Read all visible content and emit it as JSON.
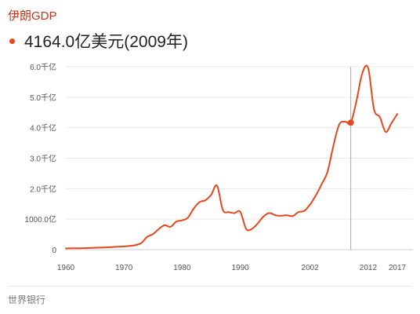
{
  "title": "伊朗GDP",
  "headline": {
    "value": "4164.0亿美元",
    "year_text": "(2009年)"
  },
  "source": "世界银行",
  "chart_data": {
    "type": "line",
    "title": "伊朗GDP",
    "ylim": [
      0,
      6000
    ],
    "xlim": [
      1960,
      2017
    ],
    "y_ticks": [
      {
        "value": 0,
        "label": "0"
      },
      {
        "value": 1000,
        "label": "1000.0亿"
      },
      {
        "value": 2000,
        "label": "2.0千亿"
      },
      {
        "value": 3000,
        "label": "3.0千亿"
      },
      {
        "value": 4000,
        "label": "4.0千亿"
      },
      {
        "value": 5000,
        "label": "5.0千亿"
      },
      {
        "value": 6000,
        "label": "6.0千亿"
      }
    ],
    "x_ticks": [
      {
        "value": 1960,
        "label": "1960"
      },
      {
        "value": 1970,
        "label": "1970"
      },
      {
        "value": 1980,
        "label": "1980"
      },
      {
        "value": 1990,
        "label": "1990"
      },
      {
        "value": 2002,
        "label": "2002"
      },
      {
        "value": 2012,
        "label": "2012"
      },
      {
        "value": 2017,
        "label": "2017"
      }
    ],
    "grid": true,
    "line_color": "#e8461c",
    "highlight": {
      "x": 2009,
      "y": 4164
    },
    "series": [
      {
        "x": [
          1960,
          1961,
          1962,
          1963,
          1964,
          1965,
          1966,
          1967,
          1968,
          1969,
          1970,
          1971,
          1972,
          1973,
          1974,
          1975,
          1976,
          1977,
          1978,
          1979,
          1980,
          1981,
          1982,
          1983,
          1984,
          1985,
          1986,
          1987,
          1988,
          1989,
          1990,
          1991,
          1992,
          1993,
          1994,
          1995,
          1996,
          1997,
          1998,
          1999,
          2000,
          2001,
          2002,
          2003,
          2004,
          2005,
          2006,
          2007,
          2008,
          2009,
          2010,
          2011,
          2012,
          2013,
          2014,
          2015,
          2016,
          2017
        ],
        "y": [
          42,
          45,
          47,
          50,
          55,
          62,
          68,
          75,
          85,
          95,
          105,
          120,
          150,
          220,
          420,
          510,
          680,
          800,
          750,
          920,
          960,
          1050,
          1350,
          1560,
          1620,
          1800,
          2100,
          1300,
          1230,
          1200,
          1240,
          680,
          680,
          860,
          1090,
          1200,
          1130,
          1110,
          1130,
          1100,
          1230,
          1270,
          1480,
          1780,
          2150,
          2550,
          3400,
          4100,
          4200,
          4164,
          4900,
          5800,
          5950,
          4600,
          4350,
          3860,
          4150,
          4450
        ]
      }
    ]
  }
}
